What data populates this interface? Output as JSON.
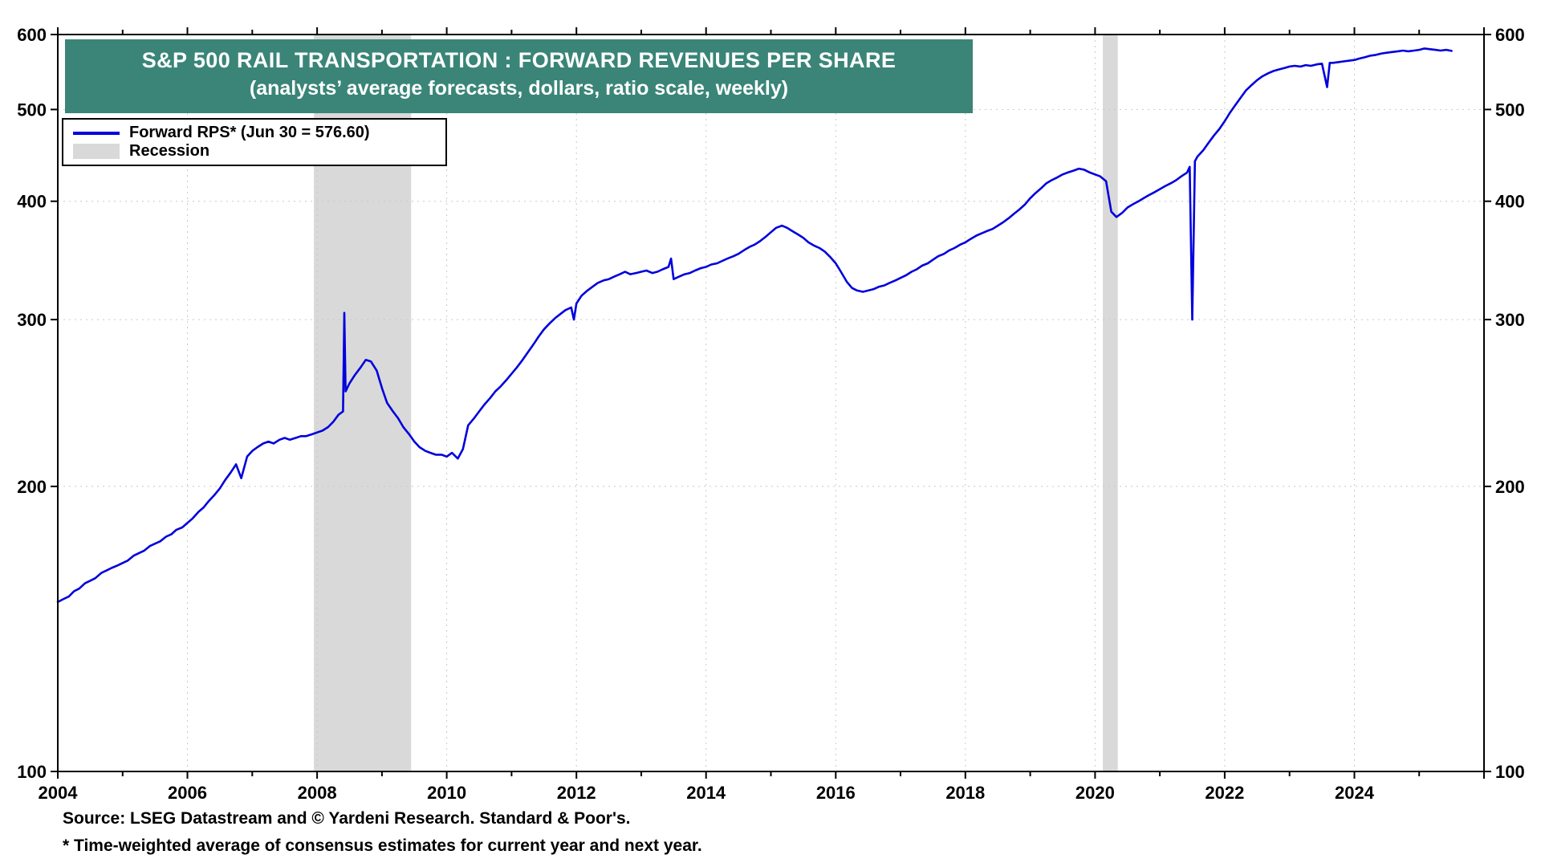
{
  "title": {
    "line1": "S&P 500 RAIL TRANSPORTATION : FORWARD REVENUES PER SHARE",
    "line2": "(analysts’ average forecasts, dollars, ratio scale, weekly)"
  },
  "legend": {
    "series_label": "Forward RPS* (Jun 30 = 576.60)",
    "recession_label": "Recession"
  },
  "footer": {
    "source": "Source: LSEG Datastream and © Yardeni Research. Standard & Poor's.",
    "footnote": "* Time-weighted average of consensus estimates for current year and next year."
  },
  "colors": {
    "series": "#0000dd",
    "recession": "#d9d9d9",
    "title_bg": "#3a8578",
    "grid": "#c9c9c9",
    "axis": "#000000"
  },
  "chart_data": {
    "type": "line",
    "title": "S&P 500 RAIL TRANSPORTATION : FORWARD REVENUES PER SHARE",
    "subtitle": "(analysts’ average forecasts, dollars, ratio scale, weekly)",
    "y_scale": "log",
    "ylim": [
      100,
      600
    ],
    "y_ticks": [
      100,
      200,
      300,
      400,
      500,
      600
    ],
    "xlim": [
      2004,
      2026
    ],
    "x_tick_labels": [
      2004,
      2006,
      2008,
      2010,
      2012,
      2014,
      2016,
      2018,
      2020,
      2022,
      2024
    ],
    "grid": "dotted",
    "legend_position": "top-left",
    "last_point_note": "Jun 30 = 576.60",
    "recessions": [
      [
        2007.95,
        2009.45
      ],
      [
        2020.12,
        2020.35
      ]
    ],
    "series": [
      {
        "name": "Forward RPS",
        "points": [
          [
            2004.0,
            151
          ],
          [
            2004.08,
            152
          ],
          [
            2004.17,
            153
          ],
          [
            2004.25,
            155
          ],
          [
            2004.33,
            156
          ],
          [
            2004.42,
            158
          ],
          [
            2004.5,
            159
          ],
          [
            2004.58,
            160
          ],
          [
            2004.67,
            162
          ],
          [
            2004.75,
            163
          ],
          [
            2004.83,
            164
          ],
          [
            2004.92,
            165
          ],
          [
            2005.0,
            166
          ],
          [
            2005.08,
            167
          ],
          [
            2005.17,
            169
          ],
          [
            2005.25,
            170
          ],
          [
            2005.33,
            171
          ],
          [
            2005.42,
            173
          ],
          [
            2005.5,
            174
          ],
          [
            2005.58,
            175
          ],
          [
            2005.67,
            177
          ],
          [
            2005.75,
            178
          ],
          [
            2005.83,
            180
          ],
          [
            2005.92,
            181
          ],
          [
            2006.0,
            183
          ],
          [
            2006.08,
            185
          ],
          [
            2006.17,
            188
          ],
          [
            2006.25,
            190
          ],
          [
            2006.33,
            193
          ],
          [
            2006.42,
            196
          ],
          [
            2006.5,
            199
          ],
          [
            2006.58,
            203
          ],
          [
            2006.67,
            207
          ],
          [
            2006.75,
            211
          ],
          [
            2006.83,
            204
          ],
          [
            2006.92,
            215
          ],
          [
            2007.0,
            218
          ],
          [
            2007.08,
            220
          ],
          [
            2007.17,
            222
          ],
          [
            2007.25,
            223
          ],
          [
            2007.33,
            222
          ],
          [
            2007.42,
            224
          ],
          [
            2007.5,
            225
          ],
          [
            2007.58,
            224
          ],
          [
            2007.67,
            225
          ],
          [
            2007.75,
            226
          ],
          [
            2007.83,
            226
          ],
          [
            2007.92,
            227
          ],
          [
            2008.0,
            228
          ],
          [
            2008.08,
            229
          ],
          [
            2008.17,
            231
          ],
          [
            2008.25,
            234
          ],
          [
            2008.33,
            238
          ],
          [
            2008.4,
            240
          ],
          [
            2008.42,
            305
          ],
          [
            2008.44,
            252
          ],
          [
            2008.5,
            257
          ],
          [
            2008.58,
            262
          ],
          [
            2008.67,
            267
          ],
          [
            2008.75,
            272
          ],
          [
            2008.83,
            271
          ],
          [
            2008.92,
            265
          ],
          [
            2009.0,
            254
          ],
          [
            2009.08,
            245
          ],
          [
            2009.17,
            240
          ],
          [
            2009.25,
            236
          ],
          [
            2009.33,
            231
          ],
          [
            2009.42,
            227
          ],
          [
            2009.5,
            223
          ],
          [
            2009.58,
            220
          ],
          [
            2009.67,
            218
          ],
          [
            2009.75,
            217
          ],
          [
            2009.83,
            216
          ],
          [
            2009.92,
            216
          ],
          [
            2010.0,
            215
          ],
          [
            2010.08,
            217
          ],
          [
            2010.17,
            214
          ],
          [
            2010.25,
            219
          ],
          [
            2010.33,
            232
          ],
          [
            2010.42,
            236
          ],
          [
            2010.5,
            240
          ],
          [
            2010.58,
            244
          ],
          [
            2010.67,
            248
          ],
          [
            2010.75,
            252
          ],
          [
            2010.83,
            255
          ],
          [
            2010.92,
            259
          ],
          [
            2011.0,
            263
          ],
          [
            2011.08,
            267
          ],
          [
            2011.17,
            272
          ],
          [
            2011.25,
            277
          ],
          [
            2011.33,
            282
          ],
          [
            2011.42,
            288
          ],
          [
            2011.5,
            293
          ],
          [
            2011.58,
            297
          ],
          [
            2011.67,
            301
          ],
          [
            2011.75,
            304
          ],
          [
            2011.83,
            307
          ],
          [
            2011.92,
            309
          ],
          [
            2011.96,
            300
          ],
          [
            2012.0,
            312
          ],
          [
            2012.08,
            318
          ],
          [
            2012.17,
            322
          ],
          [
            2012.25,
            325
          ],
          [
            2012.33,
            328
          ],
          [
            2012.42,
            330
          ],
          [
            2012.5,
            331
          ],
          [
            2012.58,
            333
          ],
          [
            2012.67,
            335
          ],
          [
            2012.75,
            337
          ],
          [
            2012.83,
            335
          ],
          [
            2012.92,
            336
          ],
          [
            2013.0,
            337
          ],
          [
            2013.08,
            338
          ],
          [
            2013.17,
            336
          ],
          [
            2013.25,
            337
          ],
          [
            2013.33,
            339
          ],
          [
            2013.42,
            341
          ],
          [
            2013.46,
            348
          ],
          [
            2013.5,
            331
          ],
          [
            2013.58,
            333
          ],
          [
            2013.67,
            335
          ],
          [
            2013.75,
            336
          ],
          [
            2013.83,
            338
          ],
          [
            2013.92,
            340
          ],
          [
            2014.0,
            341
          ],
          [
            2014.08,
            343
          ],
          [
            2014.17,
            344
          ],
          [
            2014.25,
            346
          ],
          [
            2014.33,
            348
          ],
          [
            2014.42,
            350
          ],
          [
            2014.5,
            352
          ],
          [
            2014.58,
            355
          ],
          [
            2014.67,
            358
          ],
          [
            2014.75,
            360
          ],
          [
            2014.83,
            363
          ],
          [
            2014.92,
            367
          ],
          [
            2015.0,
            371
          ],
          [
            2015.08,
            375
          ],
          [
            2015.17,
            377
          ],
          [
            2015.25,
            375
          ],
          [
            2015.33,
            372
          ],
          [
            2015.42,
            369
          ],
          [
            2015.5,
            366
          ],
          [
            2015.58,
            362
          ],
          [
            2015.67,
            359
          ],
          [
            2015.75,
            357
          ],
          [
            2015.83,
            354
          ],
          [
            2015.92,
            349
          ],
          [
            2016.0,
            344
          ],
          [
            2016.08,
            337
          ],
          [
            2016.17,
            329
          ],
          [
            2016.25,
            324
          ],
          [
            2016.33,
            322
          ],
          [
            2016.42,
            321
          ],
          [
            2016.5,
            322
          ],
          [
            2016.58,
            323
          ],
          [
            2016.67,
            325
          ],
          [
            2016.75,
            326
          ],
          [
            2016.83,
            328
          ],
          [
            2016.92,
            330
          ],
          [
            2017.0,
            332
          ],
          [
            2017.08,
            334
          ],
          [
            2017.17,
            337
          ],
          [
            2017.25,
            339
          ],
          [
            2017.33,
            342
          ],
          [
            2017.42,
            344
          ],
          [
            2017.5,
            347
          ],
          [
            2017.58,
            350
          ],
          [
            2017.67,
            352
          ],
          [
            2017.75,
            355
          ],
          [
            2017.83,
            357
          ],
          [
            2017.92,
            360
          ],
          [
            2018.0,
            362
          ],
          [
            2018.08,
            365
          ],
          [
            2018.17,
            368
          ],
          [
            2018.25,
            370
          ],
          [
            2018.33,
            372
          ],
          [
            2018.42,
            374
          ],
          [
            2018.5,
            377
          ],
          [
            2018.58,
            380
          ],
          [
            2018.67,
            384
          ],
          [
            2018.75,
            388
          ],
          [
            2018.83,
            392
          ],
          [
            2018.92,
            397
          ],
          [
            2019.0,
            403
          ],
          [
            2019.08,
            408
          ],
          [
            2019.17,
            413
          ],
          [
            2019.25,
            418
          ],
          [
            2019.33,
            421
          ],
          [
            2019.42,
            424
          ],
          [
            2019.5,
            427
          ],
          [
            2019.58,
            429
          ],
          [
            2019.67,
            431
          ],
          [
            2019.75,
            433
          ],
          [
            2019.83,
            432
          ],
          [
            2019.92,
            429
          ],
          [
            2020.0,
            427
          ],
          [
            2020.08,
            425
          ],
          [
            2020.17,
            420
          ],
          [
            2020.25,
            390
          ],
          [
            2020.33,
            385
          ],
          [
            2020.42,
            389
          ],
          [
            2020.5,
            394
          ],
          [
            2020.58,
            397
          ],
          [
            2020.67,
            400
          ],
          [
            2020.75,
            403
          ],
          [
            2020.83,
            406
          ],
          [
            2020.92,
            409
          ],
          [
            2021.0,
            412
          ],
          [
            2021.08,
            415
          ],
          [
            2021.17,
            418
          ],
          [
            2021.25,
            421
          ],
          [
            2021.33,
            425
          ],
          [
            2021.42,
            429
          ],
          [
            2021.46,
            435
          ],
          [
            2021.5,
            300
          ],
          [
            2021.54,
            441
          ],
          [
            2021.58,
            446
          ],
          [
            2021.67,
            453
          ],
          [
            2021.75,
            461
          ],
          [
            2021.83,
            469
          ],
          [
            2021.92,
            477
          ],
          [
            2022.0,
            486
          ],
          [
            2022.08,
            496
          ],
          [
            2022.17,
            506
          ],
          [
            2022.25,
            515
          ],
          [
            2022.33,
            524
          ],
          [
            2022.42,
            531
          ],
          [
            2022.5,
            537
          ],
          [
            2022.58,
            542
          ],
          [
            2022.67,
            546
          ],
          [
            2022.75,
            549
          ],
          [
            2022.83,
            551
          ],
          [
            2022.92,
            553
          ],
          [
            2023.0,
            555
          ],
          [
            2023.08,
            556
          ],
          [
            2023.17,
            555
          ],
          [
            2023.25,
            557
          ],
          [
            2023.33,
            556
          ],
          [
            2023.42,
            558
          ],
          [
            2023.5,
            559
          ],
          [
            2023.58,
            528
          ],
          [
            2023.62,
            560
          ],
          [
            2023.67,
            560
          ],
          [
            2023.75,
            561
          ],
          [
            2023.83,
            562
          ],
          [
            2023.92,
            563
          ],
          [
            2024.0,
            564
          ],
          [
            2024.08,
            566
          ],
          [
            2024.17,
            568
          ],
          [
            2024.25,
            570
          ],
          [
            2024.33,
            571
          ],
          [
            2024.42,
            573
          ],
          [
            2024.5,
            574
          ],
          [
            2024.58,
            575
          ],
          [
            2024.67,
            576
          ],
          [
            2024.75,
            577
          ],
          [
            2024.83,
            576
          ],
          [
            2024.92,
            577
          ],
          [
            2025.0,
            578
          ],
          [
            2025.08,
            580
          ],
          [
            2025.17,
            579
          ],
          [
            2025.25,
            578
          ],
          [
            2025.33,
            577
          ],
          [
            2025.42,
            578
          ],
          [
            2025.5,
            576.6
          ]
        ]
      }
    ]
  }
}
